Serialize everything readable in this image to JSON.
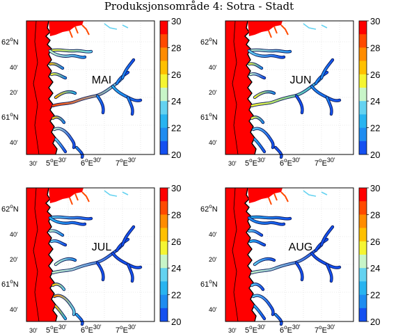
{
  "figure": {
    "title": "Produksjonsområde 4: Sotra - Stadt"
  },
  "panels": [
    {
      "month": "MAI",
      "scheme": "mai"
    },
    {
      "month": "JUN",
      "scheme": "jun"
    },
    {
      "month": "JUL",
      "scheme": "jul"
    },
    {
      "month": "AUG",
      "scheme": "aug"
    }
  ],
  "axes": {
    "lat_ticks": [
      {
        "deg": "62",
        "sup": "o",
        "hem": "N"
      },
      {
        "min": "40'"
      },
      {
        "min": "20'"
      },
      {
        "deg": "61",
        "sup": "o",
        "hem": "N"
      },
      {
        "min": "40'"
      }
    ],
    "lon_ticks": [
      {
        "min": "30'"
      },
      {
        "deg": "5",
        "sup": "o",
        "hem": "E",
        "min2": "30'"
      },
      {
        "deg": "6",
        "sup": "o",
        "hem": "E",
        "min2": "30'"
      },
      {
        "deg": "7",
        "sup": "o",
        "hem": "E",
        "min2": "30'"
      }
    ]
  },
  "colorbar": {
    "min": 20,
    "max": 30,
    "ticks": [
      "30",
      "28",
      "26",
      "24",
      "22",
      "20"
    ],
    "colors": [
      "#ff0000",
      "#ff4a00",
      "#ff8c00",
      "#ffc000",
      "#f5f532",
      "#c8f5c8",
      "#64d2f0",
      "#28b4f0",
      "#1e8cf0",
      "#1450f0"
    ]
  }
}
